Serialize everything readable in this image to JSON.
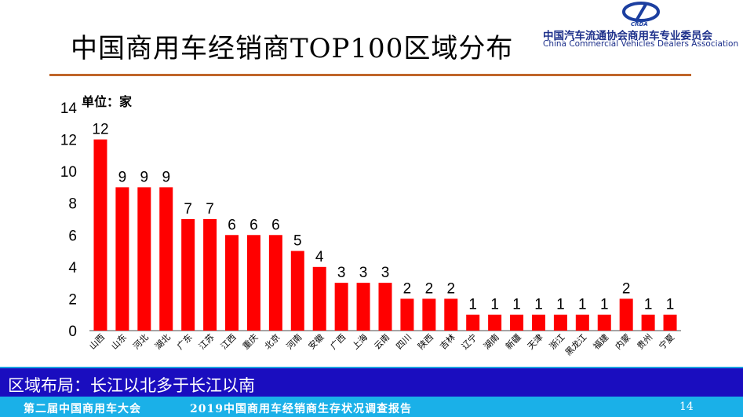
{
  "slide": {
    "title": "中国商用车经销商TOP100区域分布",
    "logo": {
      "mark": "CRDA",
      "cn": "中国汽车流通协会商用车专业委员会",
      "en": "China Commercial Vehicles Dealers Association"
    },
    "unit_label": "单位：家",
    "conclusion": "区域布局：长江以北多于长江以南",
    "footer_left": "第二届中国商用车大会",
    "footer_right": "2019中国商用车经销商生存状况调查报告",
    "page_number": "14"
  },
  "chart_data": {
    "type": "bar",
    "categories": [
      "山西",
      "山东",
      "河北",
      "湖北",
      "广东",
      "江苏",
      "江西",
      "重庆",
      "北京",
      "河南",
      "安徽",
      "广西",
      "上海",
      "云南",
      "四川",
      "陕西",
      "吉林",
      "辽宁",
      "湖南",
      "新疆",
      "天津",
      "浙江",
      "黑龙江",
      "福建",
      "内蒙",
      "贵州",
      "宁夏"
    ],
    "values": [
      12,
      9,
      9,
      9,
      7,
      7,
      6,
      6,
      6,
      5,
      4,
      3,
      3,
      3,
      2,
      2,
      2,
      1,
      1,
      1,
      1,
      1,
      1,
      1,
      2,
      1,
      1
    ],
    "ylim": [
      0,
      14
    ],
    "yticks": [
      0,
      2,
      4,
      6,
      8,
      10,
      12,
      14
    ],
    "bar_color": "#ff0000",
    "grid": false,
    "data_labels": true
  }
}
